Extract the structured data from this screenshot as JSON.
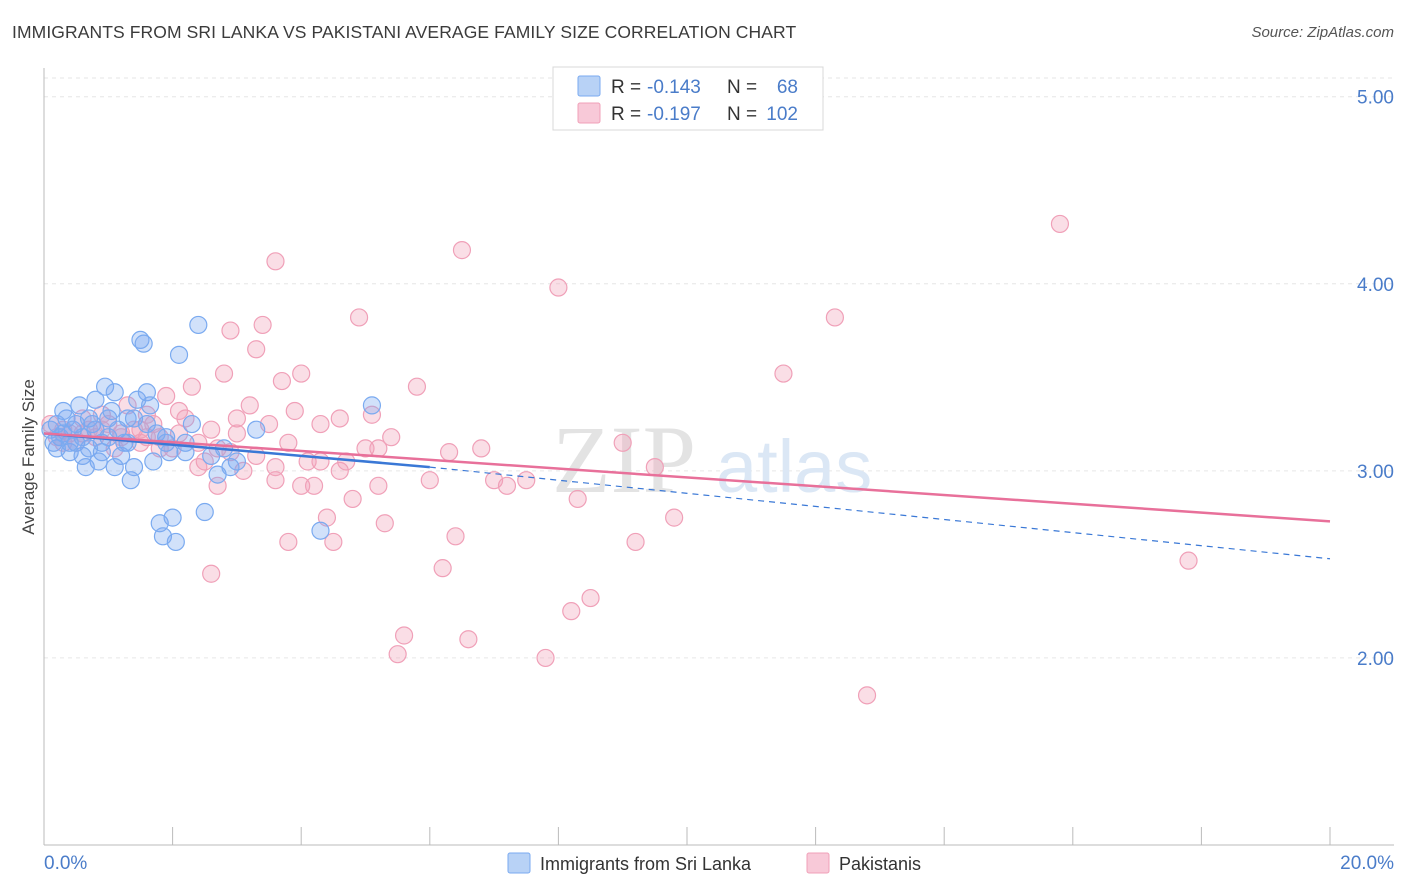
{
  "header": {
    "title": "IMMIGRANTS FROM SRI LANKA VS PAKISTANI AVERAGE FAMILY SIZE CORRELATION CHART",
    "source": "Source: ZipAtlas.com"
  },
  "watermark": {
    "part1": "ZIP",
    "part2": "atlas"
  },
  "legend": {
    "rows": [
      {
        "r_label": "R =",
        "r_value": "-0.143",
        "n_label": "N =",
        "n_value": "68"
      },
      {
        "r_label": "R =",
        "r_value": "-0.197",
        "n_label": "N =",
        "n_value": "102"
      }
    ]
  },
  "chart_data": {
    "type": "scatter",
    "title": "IMMIGRANTS FROM SRI LANKA VS PAKISTANI AVERAGE FAMILY SIZE CORRELATION CHART",
    "xlabel": "",
    "ylabel": "Average Family Size",
    "xlim": [
      0,
      20
    ],
    "ylim": [
      1.0,
      5.1
    ],
    "x_tick_labels": [
      "0.0%",
      "20.0%"
    ],
    "y_ticks": [
      2.0,
      3.0,
      4.0,
      5.0
    ],
    "y_tick_labels": [
      "2.00",
      "3.00",
      "4.00",
      "5.00"
    ],
    "colors": {
      "blue": "#7aaaf0",
      "blue_line": "#3a78d6",
      "pink": "#f0a0b8",
      "pink_line": "#e8709a"
    },
    "series": [
      {
        "name": "Immigrants from Sri Lanka",
        "color": "#7aaaf0",
        "trend": {
          "x0": 0,
          "y0": 3.2,
          "x1": 6.0,
          "y1": 3.02,
          "dashed_to_x": 20,
          "dashed_to_y": 2.53
        },
        "points": [
          [
            0.1,
            3.22
          ],
          [
            0.15,
            3.15
          ],
          [
            0.2,
            3.25
          ],
          [
            0.25,
            3.18
          ],
          [
            0.3,
            3.2
          ],
          [
            0.35,
            3.28
          ],
          [
            0.4,
            3.1
          ],
          [
            0.45,
            3.22
          ],
          [
            0.5,
            3.15
          ],
          [
            0.55,
            3.35
          ],
          [
            0.6,
            3.08
          ],
          [
            0.65,
            3.02
          ],
          [
            0.7,
            3.12
          ],
          [
            0.75,
            3.25
          ],
          [
            0.8,
            3.38
          ],
          [
            0.85,
            3.05
          ],
          [
            0.9,
            3.15
          ],
          [
            0.95,
            3.45
          ],
          [
            1.0,
            3.18
          ],
          [
            1.05,
            3.32
          ],
          [
            1.1,
            3.42
          ],
          [
            1.15,
            3.22
          ],
          [
            1.2,
            3.08
          ],
          [
            1.25,
            3.15
          ],
          [
            1.3,
            3.28
          ],
          [
            1.35,
            2.95
          ],
          [
            1.4,
            3.02
          ],
          [
            1.45,
            3.38
          ],
          [
            1.5,
            3.7
          ],
          [
            1.55,
            3.68
          ],
          [
            1.6,
            3.42
          ],
          [
            1.65,
            3.35
          ],
          [
            1.7,
            3.05
          ],
          [
            1.75,
            3.2
          ],
          [
            1.8,
            2.72
          ],
          [
            1.85,
            2.65
          ],
          [
            1.9,
            3.15
          ],
          [
            1.95,
            3.1
          ],
          [
            2.0,
            2.75
          ],
          [
            2.05,
            2.62
          ],
          [
            2.1,
            3.62
          ],
          [
            2.2,
            3.1
          ],
          [
            2.3,
            3.25
          ],
          [
            2.4,
            3.78
          ],
          [
            2.5,
            2.78
          ],
          [
            2.6,
            3.08
          ],
          [
            2.7,
            2.98
          ],
          [
            2.8,
            3.12
          ],
          [
            2.9,
            3.02
          ],
          [
            3.0,
            3.05
          ],
          [
            3.3,
            3.22
          ],
          [
            4.3,
            2.68
          ],
          [
            5.1,
            3.35
          ],
          [
            0.3,
            3.32
          ],
          [
            0.6,
            3.18
          ],
          [
            0.9,
            3.1
          ],
          [
            1.1,
            3.02
          ],
          [
            1.4,
            3.28
          ],
          [
            0.2,
            3.12
          ],
          [
            0.5,
            3.25
          ],
          [
            0.8,
            3.22
          ],
          [
            1.0,
            3.28
          ],
          [
            1.3,
            3.15
          ],
          [
            1.6,
            3.25
          ],
          [
            1.9,
            3.18
          ],
          [
            2.2,
            3.15
          ],
          [
            0.4,
            3.15
          ],
          [
            0.7,
            3.28
          ]
        ]
      },
      {
        "name": "Pakistanis",
        "color": "#f0a0b8",
        "trend": {
          "x0": 0,
          "y0": 3.2,
          "x1": 20,
          "y1": 2.73
        },
        "points": [
          [
            0.1,
            3.25
          ],
          [
            0.2,
            3.18
          ],
          [
            0.3,
            3.22
          ],
          [
            0.4,
            3.2
          ],
          [
            0.5,
            3.15
          ],
          [
            0.6,
            3.28
          ],
          [
            0.7,
            3.22
          ],
          [
            0.8,
            3.18
          ],
          [
            0.9,
            3.3
          ],
          [
            1.0,
            3.25
          ],
          [
            1.1,
            3.12
          ],
          [
            1.2,
            3.2
          ],
          [
            1.3,
            3.35
          ],
          [
            1.4,
            3.22
          ],
          [
            1.5,
            3.15
          ],
          [
            1.6,
            3.3
          ],
          [
            1.7,
            3.25
          ],
          [
            1.8,
            3.18
          ],
          [
            1.9,
            3.4
          ],
          [
            2.0,
            3.12
          ],
          [
            2.1,
            3.2
          ],
          [
            2.2,
            3.28
          ],
          [
            2.3,
            3.45
          ],
          [
            2.4,
            3.15
          ],
          [
            2.5,
            3.05
          ],
          [
            2.6,
            3.22
          ],
          [
            2.7,
            2.92
          ],
          [
            2.8,
            3.52
          ],
          [
            2.9,
            3.1
          ],
          [
            3.0,
            3.28
          ],
          [
            3.1,
            3.0
          ],
          [
            3.2,
            3.35
          ],
          [
            3.3,
            3.65
          ],
          [
            3.4,
            3.78
          ],
          [
            3.5,
            3.25
          ],
          [
            3.6,
            2.95
          ],
          [
            3.7,
            3.48
          ],
          [
            3.8,
            3.15
          ],
          [
            3.9,
            3.32
          ],
          [
            4.0,
            3.52
          ],
          [
            4.1,
            3.05
          ],
          [
            4.2,
            2.92
          ],
          [
            4.3,
            3.25
          ],
          [
            4.4,
            2.75
          ],
          [
            4.5,
            2.62
          ],
          [
            4.6,
            3.28
          ],
          [
            4.7,
            3.05
          ],
          [
            4.8,
            2.85
          ],
          [
            4.9,
            3.82
          ],
          [
            5.0,
            3.12
          ],
          [
            5.1,
            3.3
          ],
          [
            5.2,
            2.92
          ],
          [
            5.3,
            2.72
          ],
          [
            5.4,
            3.18
          ],
          [
            5.5,
            2.02
          ],
          [
            5.6,
            2.12
          ],
          [
            5.8,
            3.45
          ],
          [
            6.0,
            2.95
          ],
          [
            6.2,
            2.48
          ],
          [
            6.3,
            3.1
          ],
          [
            6.5,
            4.18
          ],
          [
            6.6,
            2.1
          ],
          [
            6.8,
            3.12
          ],
          [
            7.0,
            2.95
          ],
          [
            7.2,
            2.92
          ],
          [
            7.5,
            2.95
          ],
          [
            7.8,
            2.0
          ],
          [
            8.0,
            3.98
          ],
          [
            8.2,
            2.25
          ],
          [
            8.3,
            2.85
          ],
          [
            8.5,
            2.32
          ],
          [
            9.0,
            3.15
          ],
          [
            9.2,
            2.62
          ],
          [
            9.5,
            3.02
          ],
          [
            9.8,
            2.75
          ],
          [
            11.5,
            3.52
          ],
          [
            12.3,
            3.82
          ],
          [
            12.8,
            1.8
          ],
          [
            15.8,
            4.32
          ],
          [
            17.8,
            2.52
          ],
          [
            3.6,
            4.12
          ],
          [
            2.9,
            3.75
          ],
          [
            2.6,
            2.45
          ],
          [
            3.8,
            2.62
          ],
          [
            4.3,
            3.05
          ],
          [
            5.2,
            3.12
          ],
          [
            6.4,
            2.65
          ],
          [
            1.6,
            3.18
          ],
          [
            0.3,
            3.15
          ],
          [
            0.6,
            3.2
          ],
          [
            0.9,
            3.22
          ],
          [
            1.2,
            3.18
          ],
          [
            1.5,
            3.22
          ],
          [
            1.8,
            3.12
          ],
          [
            2.1,
            3.32
          ],
          [
            2.4,
            3.02
          ],
          [
            2.7,
            3.12
          ],
          [
            3.0,
            3.2
          ],
          [
            3.3,
            3.08
          ],
          [
            3.6,
            3.02
          ],
          [
            4.0,
            2.92
          ],
          [
            4.6,
            3.0
          ]
        ]
      }
    ],
    "legend_entries": [
      "Immigrants from Sri Lanka",
      "Pakistanis"
    ]
  }
}
